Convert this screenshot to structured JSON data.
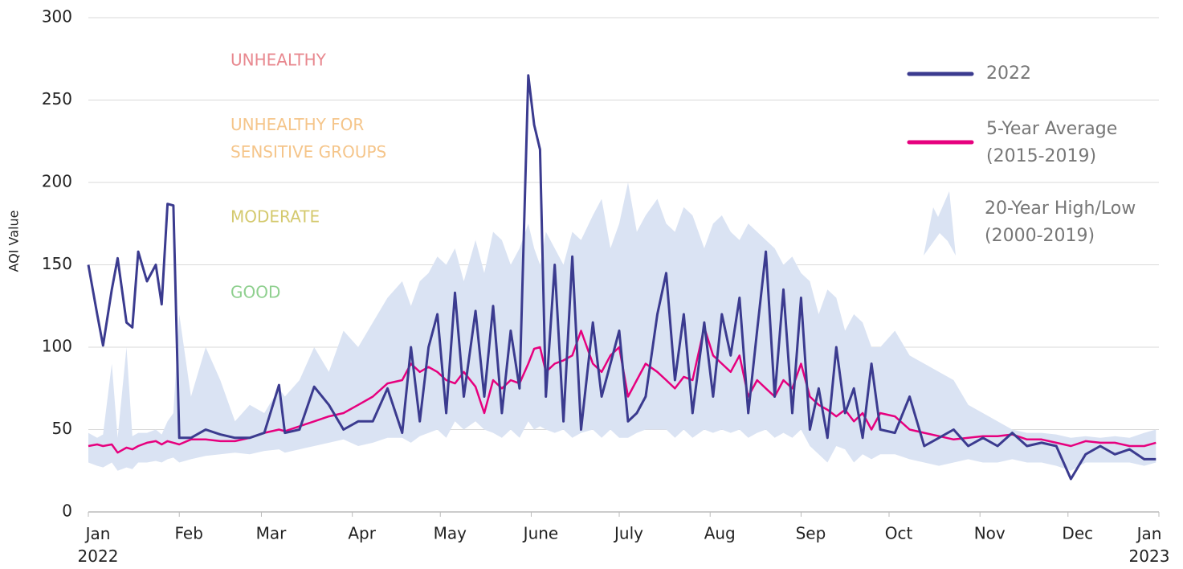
{
  "chart_data": {
    "type": "line",
    "ylabel": "AQI Value",
    "xlim": [
      0,
      365
    ],
    "ylim": [
      0,
      300
    ],
    "yticks": [
      0,
      50,
      100,
      150,
      200,
      250,
      300
    ],
    "xticks": [
      {
        "value": 0,
        "label": "Jan\n2022"
      },
      {
        "value": 31,
        "label": "Feb"
      },
      {
        "value": 59,
        "label": "Mar"
      },
      {
        "value": 90,
        "label": "Apr"
      },
      {
        "value": 120,
        "label": "May"
      },
      {
        "value": 151,
        "label": "June"
      },
      {
        "value": 181,
        "label": "July"
      },
      {
        "value": 212,
        "label": "Aug"
      },
      {
        "value": 243,
        "label": "Sep"
      },
      {
        "value": 273,
        "label": "Oct"
      },
      {
        "value": 304,
        "label": "Nov"
      },
      {
        "value": 334,
        "label": "Dec"
      },
      {
        "value": 365,
        "label": "Jan\n2023"
      }
    ],
    "grid": true,
    "annotations": [
      {
        "text": "UNHEALTHY",
        "color": "#e8888f"
      },
      {
        "text": "UNHEALTHY FOR\nSENSITIVE GROUPS",
        "color": "#f5c58a"
      },
      {
        "text": "MODERATE",
        "color": "#d4c96e"
      },
      {
        "text": "GOOD",
        "color": "#8fd08f"
      }
    ],
    "x": [
      0,
      3,
      5,
      8,
      10,
      13,
      15,
      17,
      20,
      23,
      25,
      27,
      29,
      31,
      35,
      40,
      45,
      50,
      55,
      60,
      65,
      67,
      72,
      77,
      82,
      87,
      92,
      97,
      102,
      107,
      110,
      113,
      116,
      119,
      122,
      125,
      128,
      132,
      135,
      138,
      141,
      144,
      147,
      150,
      152,
      154,
      156,
      159,
      162,
      165,
      168,
      172,
      175,
      178,
      181,
      184,
      187,
      190,
      194,
      197,
      200,
      203,
      206,
      210,
      213,
      216,
      219,
      222,
      225,
      228,
      231,
      234,
      237,
      240,
      243,
      246,
      249,
      252,
      255,
      258,
      261,
      264,
      267,
      270,
      275,
      280,
      285,
      290,
      295,
      300,
      305,
      310,
      315,
      320,
      325,
      330,
      335,
      340,
      345,
      350,
      355,
      360,
      364
    ],
    "series": [
      {
        "name": "20-Year High/Low\n(2000-2019)",
        "color": "#dae3f3",
        "low": [
          30,
          28,
          27,
          30,
          25,
          27,
          26,
          30,
          30,
          31,
          30,
          32,
          33,
          30,
          32,
          34,
          35,
          36,
          35,
          37,
          38,
          36,
          38,
          40,
          42,
          44,
          40,
          42,
          45,
          45,
          42,
          46,
          48,
          50,
          45,
          55,
          50,
          55,
          50,
          48,
          45,
          50,
          45,
          55,
          50,
          52,
          50,
          48,
          50,
          45,
          48,
          50,
          45,
          50,
          45,
          45,
          48,
          50,
          50,
          50,
          45,
          50,
          45,
          50,
          48,
          50,
          48,
          50,
          45,
          48,
          50,
          45,
          48,
          45,
          50,
          40,
          35,
          30,
          40,
          38,
          30,
          35,
          32,
          35,
          35,
          32,
          30,
          28,
          30,
          32,
          30,
          30,
          32,
          30,
          30,
          28,
          25,
          30,
          30,
          30,
          30,
          28,
          30
        ],
        "high": [
          48,
          45,
          47,
          90,
          45,
          100,
          46,
          48,
          48,
          50,
          47,
          55,
          60,
          120,
          70,
          100,
          80,
          55,
          65,
          60,
          75,
          70,
          80,
          100,
          85,
          110,
          100,
          115,
          130,
          140,
          125,
          140,
          145,
          155,
          150,
          160,
          140,
          165,
          145,
          170,
          165,
          150,
          160,
          175,
          160,
          150,
          170,
          160,
          150,
          170,
          165,
          180,
          190,
          160,
          175,
          200,
          170,
          180,
          190,
          175,
          170,
          185,
          180,
          160,
          175,
          180,
          170,
          165,
          175,
          170,
          165,
          160,
          150,
          155,
          145,
          140,
          120,
          135,
          130,
          110,
          120,
          115,
          100,
          100,
          110,
          95,
          90,
          85,
          80,
          65,
          60,
          55,
          50,
          48,
          48,
          47,
          45,
          46,
          45,
          46,
          45,
          48,
          50
        ]
      },
      {
        "name": "5-Year Average\n(2015-2019)",
        "color": "#e6007e",
        "values": [
          40,
          41,
          40,
          41,
          36,
          39,
          38,
          40,
          42,
          43,
          41,
          43,
          42,
          41,
          44,
          44,
          43,
          43,
          45,
          48,
          50,
          49,
          52,
          55,
          58,
          60,
          65,
          70,
          78,
          80,
          90,
          85,
          88,
          85,
          80,
          78,
          85,
          76,
          60,
          80,
          75,
          80,
          78,
          90,
          99,
          100,
          85,
          90,
          92,
          95,
          110,
          90,
          85,
          95,
          100,
          70,
          80,
          90,
          85,
          80,
          75,
          82,
          80,
          112,
          95,
          90,
          85,
          95,
          70,
          80,
          75,
          70,
          80,
          75,
          90,
          70,
          65,
          62,
          58,
          62,
          55,
          60,
          50,
          60,
          58,
          50,
          48,
          46,
          44,
          45,
          46,
          46,
          47,
          44,
          44,
          42,
          40,
          43,
          42,
          42,
          40,
          40,
          42
        ]
      },
      {
        "name": "2022",
        "color": "#3b3b8f",
        "values": [
          150,
          120,
          101,
          135,
          154,
          115,
          112,
          158,
          140,
          150,
          126,
          187,
          186,
          45,
          45,
          50,
          47,
          45,
          45,
          48,
          77,
          48,
          50,
          76,
          65,
          50,
          55,
          55,
          75,
          48,
          100,
          55,
          100,
          120,
          60,
          133,
          70,
          122,
          70,
          125,
          60,
          110,
          75,
          265,
          235,
          220,
          70,
          150,
          55,
          155,
          50,
          115,
          70,
          90,
          110,
          55,
          60,
          70,
          120,
          145,
          80,
          120,
          60,
          115,
          70,
          120,
          95,
          130,
          60,
          110,
          158,
          70,
          135,
          60,
          130,
          50,
          75,
          45,
          100,
          60,
          75,
          45,
          90,
          50,
          48,
          70,
          40,
          45,
          50,
          40,
          45,
          40,
          48,
          40,
          42,
          40,
          20,
          35,
          40,
          35,
          38,
          32,
          32
        ]
      }
    ]
  }
}
